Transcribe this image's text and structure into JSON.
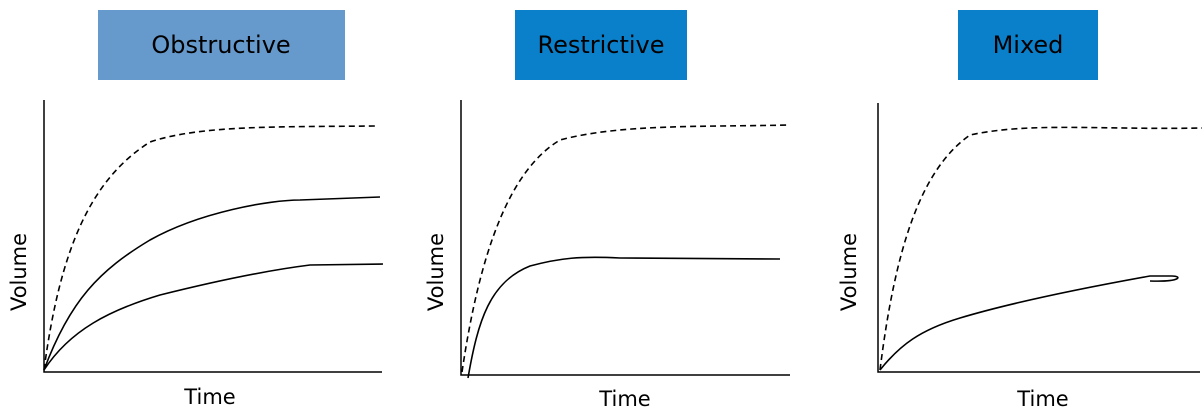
{
  "panels": [
    {
      "title": "Obstructive",
      "x_label": "Time",
      "y_label": "Volume"
    },
    {
      "title": "Restrictive",
      "x_label": "Time",
      "y_label": "Volume"
    },
    {
      "title": "Mixed",
      "x_label": "Time",
      "y_label": "Volume"
    }
  ]
}
